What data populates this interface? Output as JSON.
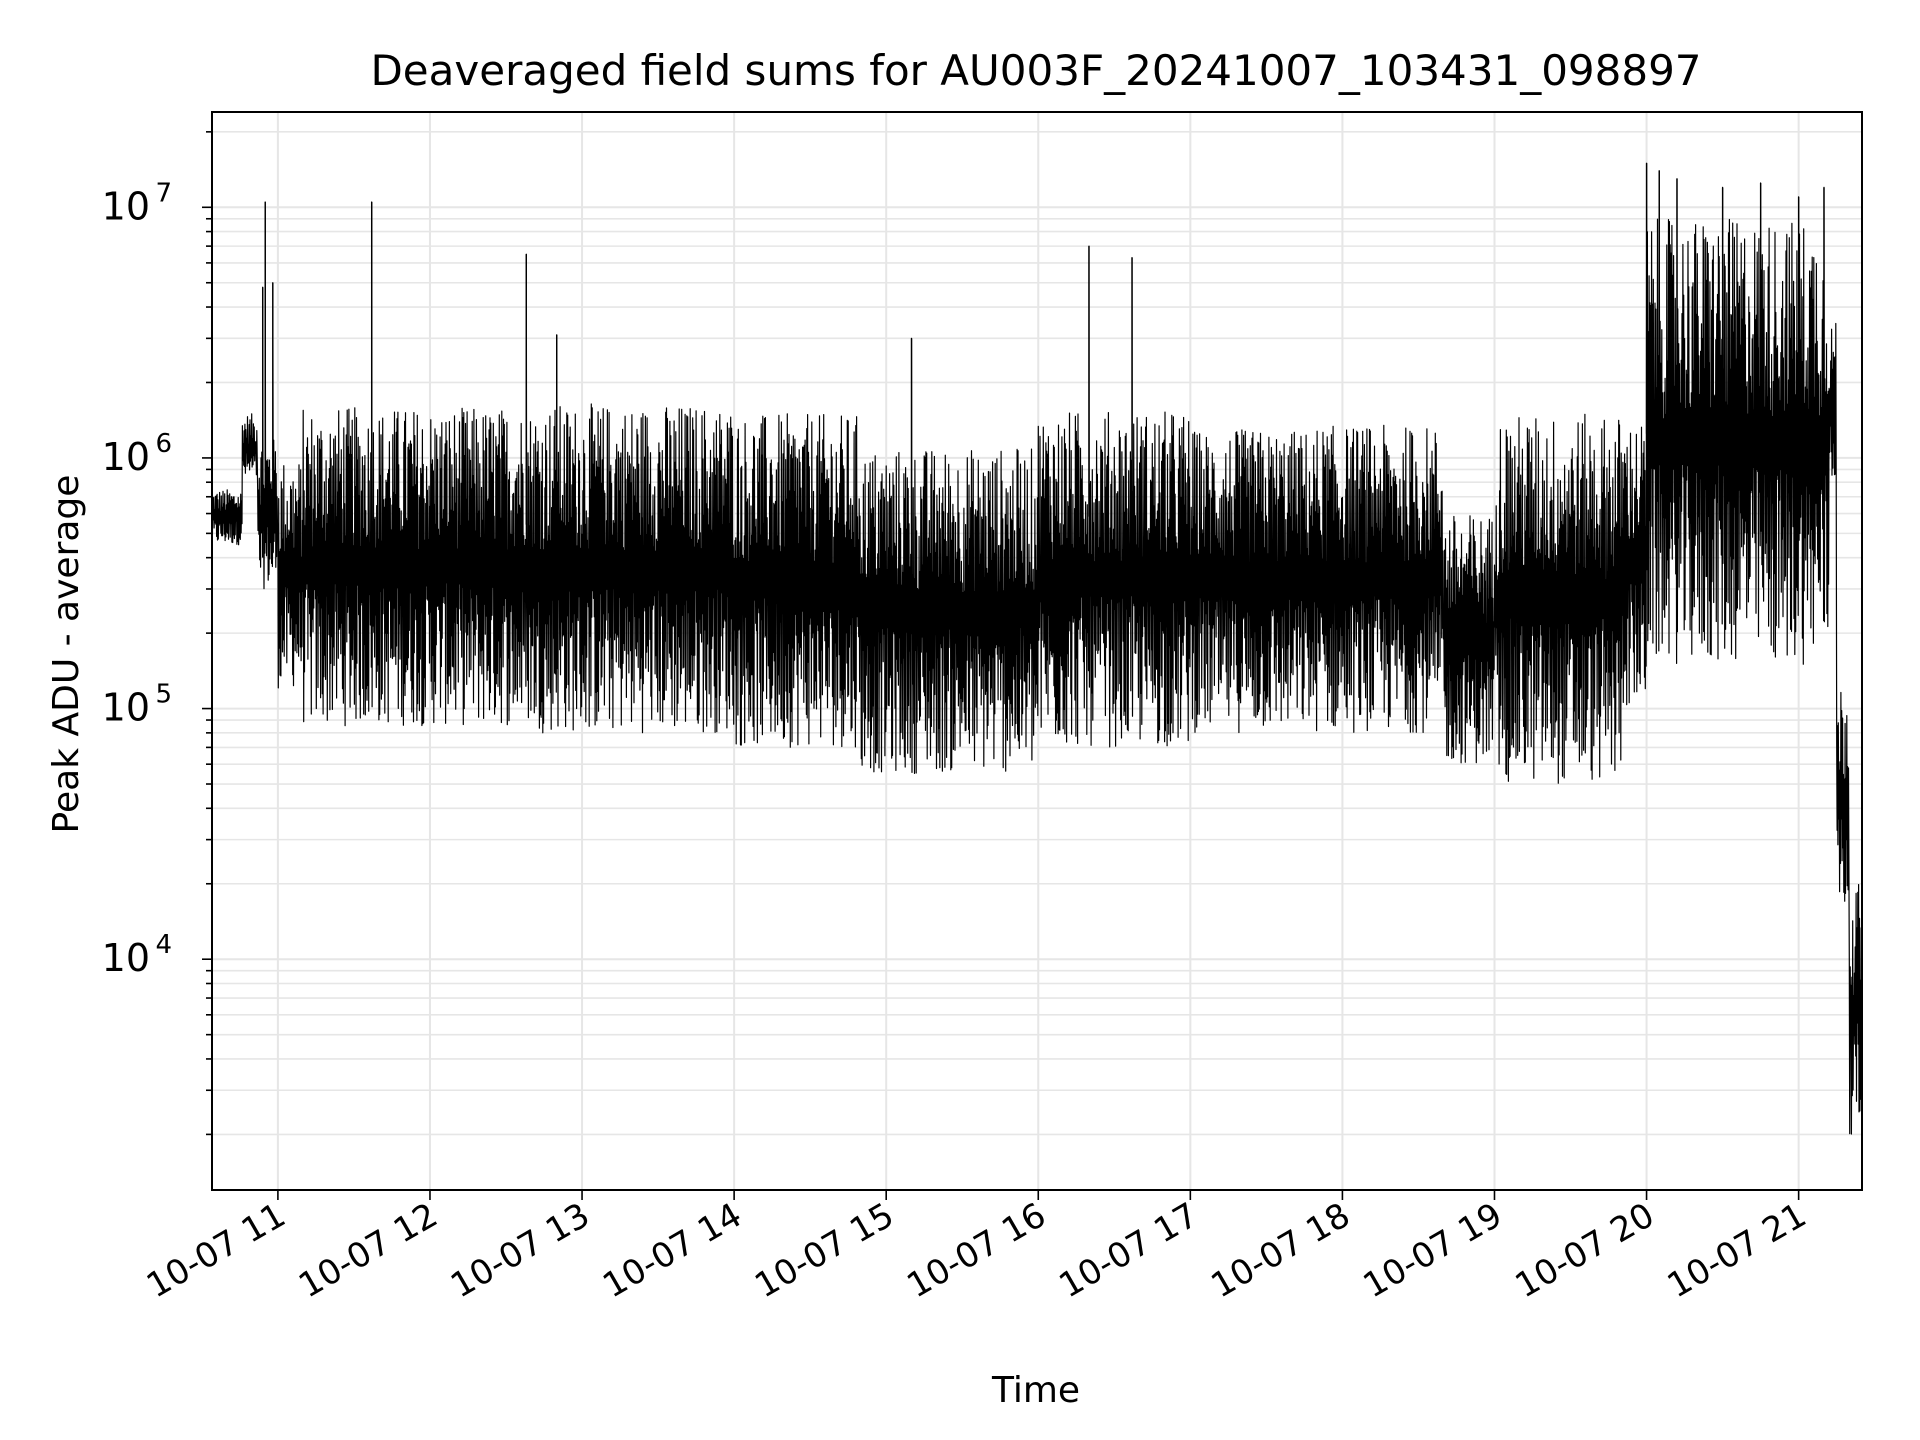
{
  "chart_data": {
    "type": "line",
    "title": "Deaveraged field sums for AU003F_20241007_103431_098897",
    "xlabel": "Time",
    "ylabel": "Peak ADU - average",
    "x_axis": {
      "kind": "datetime",
      "xlim": [
        "2024-10-07 10:34",
        "2024-10-07 21:25"
      ],
      "ticks": [
        {
          "value": "2024-10-07 11:00",
          "label": "10-07 11"
        },
        {
          "value": "2024-10-07 12:00",
          "label": "10-07 12"
        },
        {
          "value": "2024-10-07 13:00",
          "label": "10-07 13"
        },
        {
          "value": "2024-10-07 14:00",
          "label": "10-07 14"
        },
        {
          "value": "2024-10-07 15:00",
          "label": "10-07 15"
        },
        {
          "value": "2024-10-07 16:00",
          "label": "10-07 16"
        },
        {
          "value": "2024-10-07 17:00",
          "label": "10-07 17"
        },
        {
          "value": "2024-10-07 18:00",
          "label": "10-07 18"
        },
        {
          "value": "2024-10-07 19:00",
          "label": "10-07 19"
        },
        {
          "value": "2024-10-07 20:00",
          "label": "10-07 20"
        },
        {
          "value": "2024-10-07 21:00",
          "label": "10-07 21"
        }
      ]
    },
    "y_axis": {
      "scale": "log",
      "ylim": [
        1200,
        24000000
      ],
      "ticks": [
        {
          "value": 10000,
          "base": "10",
          "exp": "4"
        },
        {
          "value": 100000,
          "base": "10",
          "exp": "5"
        },
        {
          "value": 1000000,
          "base": "10",
          "exp": "6"
        },
        {
          "value": 10000000,
          "base": "10",
          "exp": "7"
        }
      ]
    },
    "grid": "major and minor",
    "line_color": "#000000",
    "grid_color": "#e6e6e6",
    "series": [
      {
        "segments": [
          {
            "start": "2024-10-07 10:34",
            "end": "2024-10-07 10:46",
            "low": 450000,
            "high": 750000
          },
          {
            "start": "2024-10-07 10:46",
            "end": "2024-10-07 10:52",
            "low": 800000,
            "high": 1500000
          },
          {
            "start": "2024-10-07 10:52",
            "end": "2024-10-07 11:00",
            "low": 300000,
            "high": 1200000
          },
          {
            "start": "2024-10-07 11:00",
            "end": "2024-10-07 11:10",
            "low": 120000,
            "high": 1000000
          },
          {
            "start": "2024-10-07 11:10",
            "end": "2024-10-07 12:40",
            "low": 85000,
            "high": 1600000
          },
          {
            "start": "2024-10-07 12:40",
            "end": "2024-10-07 14:00",
            "low": 80000,
            "high": 1650000
          },
          {
            "start": "2024-10-07 14:00",
            "end": "2024-10-07 14:50",
            "low": 70000,
            "high": 1500000
          },
          {
            "start": "2024-10-07 14:50",
            "end": "2024-10-07 16:00",
            "low": 55000,
            "high": 1100000
          },
          {
            "start": "2024-10-07 16:00",
            "end": "2024-10-07 17:00",
            "low": 70000,
            "high": 1550000
          },
          {
            "start": "2024-10-07 17:00",
            "end": "2024-10-07 17:50",
            "low": 80000,
            "high": 1300000
          },
          {
            "start": "2024-10-07 17:50",
            "end": "2024-10-07 18:40",
            "low": 80000,
            "high": 1350000
          },
          {
            "start": "2024-10-07 18:40",
            "end": "2024-10-07 19:00",
            "low": 60000,
            "high": 600000
          },
          {
            "start": "2024-10-07 19:00",
            "end": "2024-10-07 19:50",
            "low": 50000,
            "high": 1500000
          },
          {
            "start": "2024-10-07 19:50",
            "end": "2024-10-07 20:00",
            "low": 100000,
            "high": 1400000
          },
          {
            "start": "2024-10-07 20:00",
            "end": "2024-10-07 21:12",
            "low": 150000,
            "high": 9000000
          },
          {
            "start": "2024-10-07 21:12",
            "end": "2024-10-07 21:15",
            "low": 800000,
            "high": 3500000
          },
          {
            "start": "2024-10-07 21:15",
            "end": "2024-10-07 21:20",
            "low": 15000,
            "high": 130000
          },
          {
            "start": "2024-10-07 21:20",
            "end": "2024-10-07 21:25",
            "low": 2000,
            "high": 20000
          }
        ],
        "spikes": [
          {
            "t": "2024-10-07 10:54",
            "value": 4800000
          },
          {
            "t": "2024-10-07 10:55",
            "value": 10500000
          },
          {
            "t": "2024-10-07 10:58",
            "value": 5000000
          },
          {
            "t": "2024-10-07 11:37",
            "value": 10500000
          },
          {
            "t": "2024-10-07 12:38",
            "value": 6500000
          },
          {
            "t": "2024-10-07 12:50",
            "value": 3100000
          },
          {
            "t": "2024-10-07 15:10",
            "value": 3000000
          },
          {
            "t": "2024-10-07 16:20",
            "value": 7000000
          },
          {
            "t": "2024-10-07 16:37",
            "value": 6300000
          },
          {
            "t": "2024-10-07 20:00",
            "value": 15000000
          },
          {
            "t": "2024-10-07 20:05",
            "value": 14000000
          },
          {
            "t": "2024-10-07 20:12",
            "value": 13000000
          },
          {
            "t": "2024-10-07 20:30",
            "value": 12000000
          },
          {
            "t": "2024-10-07 20:45",
            "value": 12500000
          },
          {
            "t": "2024-10-07 21:00",
            "value": 11000000
          },
          {
            "t": "2024-10-07 21:10",
            "value": 12000000
          }
        ]
      }
    ]
  }
}
